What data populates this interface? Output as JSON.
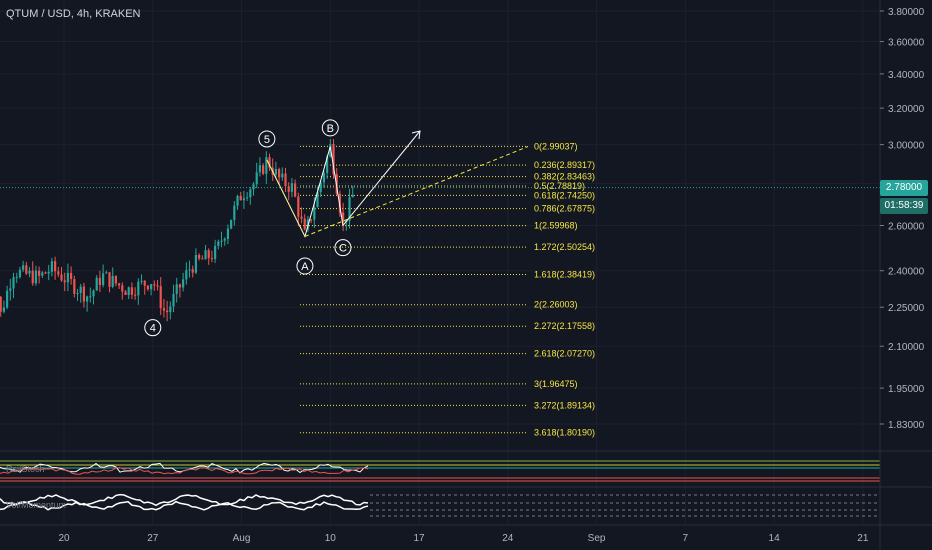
{
  "header": {
    "symbol_line": "QTUM / USD, 4h, KRAKEN"
  },
  "price_tag": {
    "price": "2.78000",
    "countdown": "01:58:39"
  },
  "colors": {
    "background": "#131722",
    "up": "#26a69a",
    "down": "#ef5350",
    "fib": "#f5e642",
    "text": "#d1d4dc",
    "price_line": "#26a69a",
    "countdown_bg": "#1f6f68"
  },
  "chart_data": {
    "type": "candlestick",
    "title": "QTUM / USD, 4h, KRAKEN",
    "y_scale": "log",
    "y_ticks": [
      "3.80000",
      "3.60000",
      "3.40000",
      "3.20000",
      "3.00000",
      "2.80000",
      "2.60000",
      "2.40000",
      "2.25000",
      "2.10000",
      "1.95000",
      "1.83000"
    ],
    "x_ticks": [
      "20",
      "27",
      "Aug",
      "10",
      "17",
      "24",
      "Sep",
      "7",
      "14",
      "21"
    ],
    "last_price": 2.78,
    "price_path": [
      {
        "t": "Jul 14",
        "p": 2.54
      },
      {
        "t": "Jul 15",
        "p": 2.22
      },
      {
        "t": "Jul 16",
        "p": 2.4
      },
      {
        "t": "Jul 18",
        "p": 2.37
      },
      {
        "t": "Jul 19",
        "p": 2.41
      },
      {
        "t": "Jul 22",
        "p": 2.29
      },
      {
        "t": "Jul 23",
        "p": 2.38
      },
      {
        "t": "Jul 25",
        "p": 2.32
      },
      {
        "t": "Jul 27",
        "p": 2.36
      },
      {
        "t": "Jul 28",
        "p": 2.22
      },
      {
        "t": "Jul 30",
        "p": 2.42
      },
      {
        "t": "Aug 1",
        "p": 2.48
      },
      {
        "t": "Aug 3",
        "p": 2.75
      },
      {
        "t": "Aug 4",
        "p": 2.8
      },
      {
        "t": "Aug 5",
        "p": 2.92
      },
      {
        "t": "Aug 6",
        "p": 2.82
      },
      {
        "t": "Aug 7",
        "p": 2.78
      },
      {
        "t": "Aug 8",
        "p": 2.55
      },
      {
        "t": "Aug 9",
        "p": 2.75
      },
      {
        "t": "Aug 10",
        "p": 2.99
      },
      {
        "t": "Aug 11",
        "p": 2.6
      },
      {
        "t": "Aug 12",
        "p": 2.78
      }
    ],
    "wave_labels": [
      {
        "label": "4",
        "t": "Jul 27",
        "p": 2.17
      },
      {
        "label": "5",
        "t": "Aug 5",
        "p": 3.03
      },
      {
        "label": "A",
        "t": "Aug 8",
        "p": 2.42
      },
      {
        "label": "B",
        "t": "Aug 10",
        "p": 3.09
      },
      {
        "label": "C",
        "t": "Aug 11",
        "p": 2.5
      }
    ],
    "fibonacci": [
      {
        "label": "0(2.99037)",
        "level": 0,
        "price": 2.99037
      },
      {
        "label": "0.236(2.89317)",
        "level": 0.236,
        "price": 2.89317
      },
      {
        "label": "0.382(2.83463)",
        "level": 0.382,
        "price": 2.83463
      },
      {
        "label": "0.5(2.78819)",
        "level": 0.5,
        "price": 2.78819
      },
      {
        "label": "0.618(2.74250)",
        "level": 0.618,
        "price": 2.7425
      },
      {
        "label": "0.786(2.67875)",
        "level": 0.786,
        "price": 2.67875
      },
      {
        "label": "1(2.59968)",
        "level": 1,
        "price": 2.59968
      },
      {
        "label": "1.272(2.50254)",
        "level": 1.272,
        "price": 2.50254
      },
      {
        "label": "1.618(2.38419)",
        "level": 1.618,
        "price": 2.38419
      },
      {
        "label": "2(2.26003)",
        "level": 2,
        "price": 2.26003
      },
      {
        "label": "2.272(2.17558)",
        "level": 2.272,
        "price": 2.17558
      },
      {
        "label": "2.618(2.07270)",
        "level": 2.618,
        "price": 2.0727
      },
      {
        "label": "3(1.96475)",
        "level": 3,
        "price": 1.96475
      },
      {
        "label": "3.272(1.89134)",
        "level": 3.272,
        "price": 1.89134
      },
      {
        "label": "3.618(1.80190)",
        "level": 3.618,
        "price": 1.8019
      }
    ],
    "indicator_pane_labels": [
      "Rsi/Stoch",
      "Vol/Momentum"
    ]
  }
}
